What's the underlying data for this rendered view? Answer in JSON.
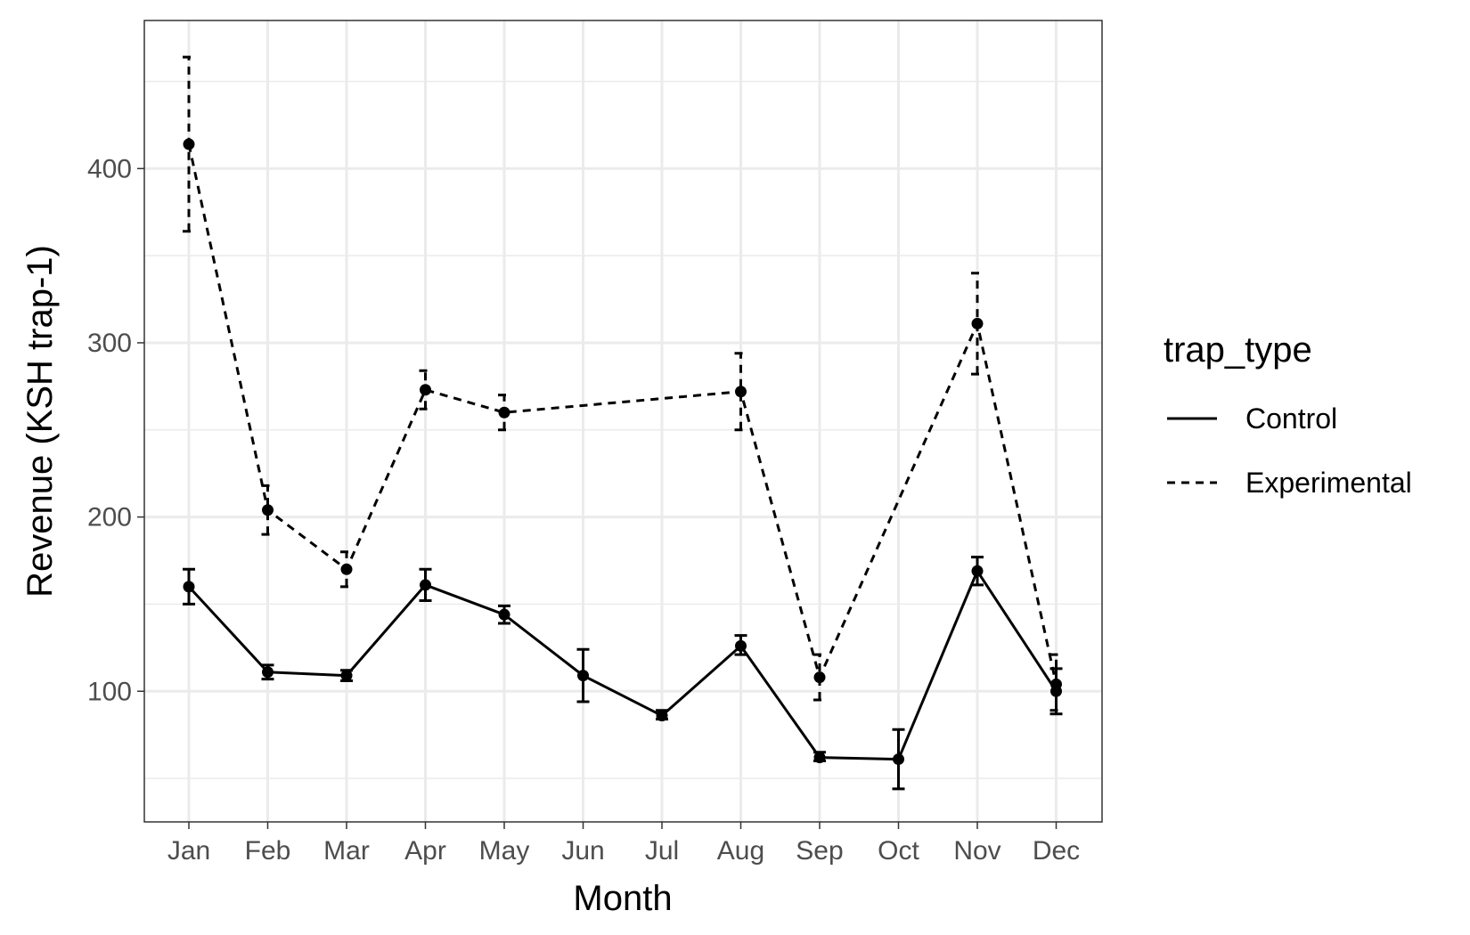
{
  "chart_data": {
    "type": "line",
    "xlabel": "Month",
    "ylabel": "Revenue (KSH trap-1)",
    "categories": [
      "Jan",
      "Feb",
      "Mar",
      "Apr",
      "May",
      "Jun",
      "Jul",
      "Aug",
      "Sep",
      "Oct",
      "Nov",
      "Dec"
    ],
    "ylim": [
      25,
      485
    ],
    "yticks": [
      100,
      200,
      300,
      400
    ],
    "yminor": [
      50,
      150,
      250,
      350,
      450
    ],
    "grid": true,
    "legend": {
      "title": "trap_type",
      "position": "right"
    },
    "series": [
      {
        "name": "Control",
        "linestyle": "solid",
        "x": [
          "Jan",
          "Feb",
          "Mar",
          "Apr",
          "May",
          "Jun",
          "Jul",
          "Aug",
          "Sep",
          "Oct",
          "Nov",
          "Dec"
        ],
        "values": [
          160,
          111,
          109,
          161,
          144,
          109,
          86,
          126,
          62,
          61,
          169,
          100
        ],
        "err_low": [
          150,
          107,
          106,
          152,
          139,
          94,
          84,
          121,
          60,
          44,
          161,
          87
        ],
        "err_high": [
          170,
          115,
          112,
          170,
          149,
          124,
          89,
          132,
          65,
          78,
          177,
          113
        ]
      },
      {
        "name": "Experimental",
        "linestyle": "dashed",
        "x": [
          "Jan",
          "Feb",
          "Mar",
          "Apr",
          "May",
          "Aug",
          "Sep",
          "Nov",
          "Dec"
        ],
        "values": [
          414,
          204,
          170,
          273,
          260,
          272,
          108,
          311,
          104
        ],
        "err_low": [
          364,
          190,
          160,
          262,
          250,
          250,
          95,
          282,
          89
        ],
        "err_high": [
          464,
          218,
          180,
          284,
          270,
          294,
          121,
          340,
          121
        ]
      }
    ],
    "colors": {
      "line": "#000000",
      "grid": "#ebebeb",
      "panel_border": "#333333",
      "tick_text": "#4d4d4d"
    }
  }
}
